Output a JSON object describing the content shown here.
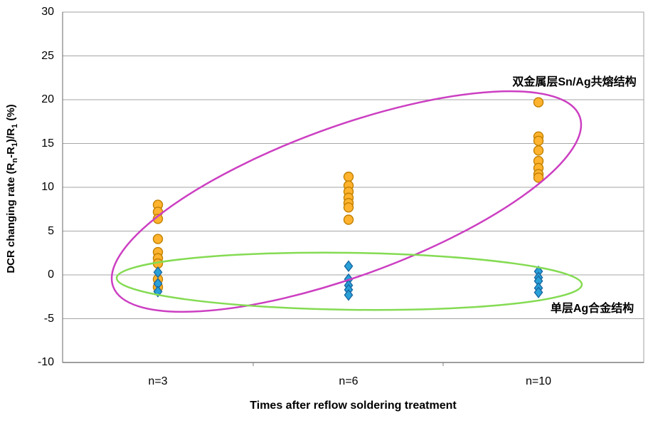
{
  "figure": {
    "background": "#FFFFFF",
    "grid_color": "#A6A6A6",
    "frame_color": "#A0A0A0",
    "axis_color": "#7F7F7F"
  },
  "chart_data": {
    "type": "scatter",
    "title": "",
    "xlabel": "Times after reflow soldering treatment",
    "ylabel": "DCR changing rate (Rn-R1)/R1 (%)",
    "ylabel_parts": {
      "p1": "DCR changing  rate  (R",
      "s1": "n",
      "p2": "-R",
      "s2": "1",
      "p3": ")/R",
      "s3": "1",
      "p4": " (%)"
    },
    "categories": [
      "n=3",
      "n=6",
      "n=10"
    ],
    "ylim": [
      -10,
      30
    ],
    "yticks": [
      30,
      25,
      20,
      15,
      10,
      5,
      0,
      -5,
      -10
    ],
    "grid": "horizontal",
    "legend_position": "none",
    "series": [
      {
        "name": "双金属层Sn/Ag共熔结构",
        "marker": "circle",
        "fill": "#FFB32E",
        "stroke": "#C08000",
        "values_by_category": [
          [
            8.0,
            7.2,
            6.4,
            4.1,
            2.6,
            1.9,
            1.3,
            -0.5,
            -1.4
          ],
          [
            11.2,
            10.2,
            9.5,
            8.8,
            8.2,
            7.7,
            6.3
          ],
          [
            19.7,
            15.8,
            15.3,
            14.2,
            13.0,
            12.2,
            11.5,
            11.1
          ]
        ]
      },
      {
        "name": "单层Ag合金结构",
        "marker": "diamond",
        "fill": "#29A0D8",
        "stroke": "#17649F",
        "values_by_category": [
          [
            0.3,
            -1.0,
            -1.9
          ],
          [
            1.0,
            -0.5,
            -1.2,
            -1.7,
            -2.3
          ],
          [
            0.4,
            -0.3,
            -0.7,
            -1.5,
            -2.0
          ]
        ]
      }
    ],
    "annotations": [
      {
        "text": "双金属层Sn/Ag共熔结构",
        "ellipse_color": "#CC3FC2",
        "ellipse_for": "circle-series"
      },
      {
        "text": "单层Ag合金结构",
        "ellipse_color": "#84DB52",
        "ellipse_for": "diamond-series"
      }
    ]
  }
}
